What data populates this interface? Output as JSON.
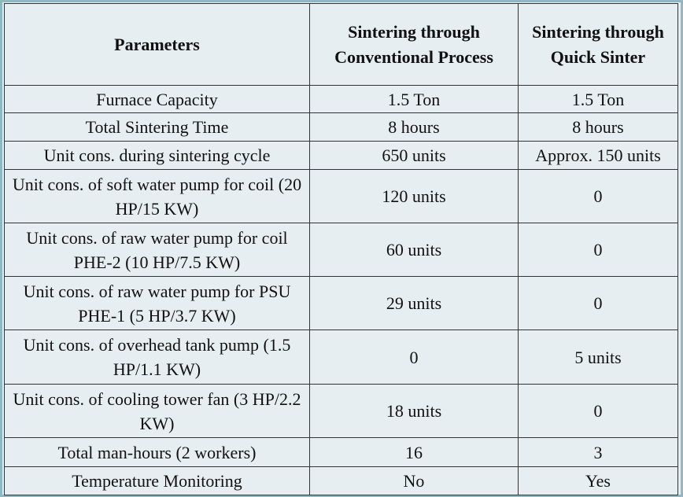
{
  "table": {
    "header": [
      "Parameters",
      "Sintering through Conventional Process",
      "Sintering through Quick Sinter"
    ],
    "rows": [
      [
        "Furnace Capacity",
        "1.5 Ton",
        "1.5 Ton"
      ],
      [
        "Total Sintering Time",
        "8 hours",
        "8 hours"
      ],
      [
        "Unit cons. during sintering cycle",
        "650 units",
        "Approx. 150 units"
      ],
      [
        "Unit cons. of soft water pump for coil (20 HP/15 KW)",
        "120 units",
        "0"
      ],
      [
        "Unit cons. of raw water pump for coil PHE-2 (10 HP/7.5 KW)",
        "60 units",
        "0"
      ],
      [
        "Unit cons. of raw water pump for PSU PHE-1 (5 HP/3.7 KW)",
        "29 units",
        "0"
      ],
      [
        "Unit cons. of overhead tank pump (1.5 HP/1.1 KW)",
        "0",
        "5 units"
      ],
      [
        "Unit cons. of cooling tower fan (3 HP/2.2 KW)",
        "18 units",
        "0"
      ],
      [
        "Total man-hours (2 workers)",
        "16",
        "3"
      ],
      [
        "Temperature Monitoring",
        "No",
        "Yes"
      ]
    ]
  }
}
